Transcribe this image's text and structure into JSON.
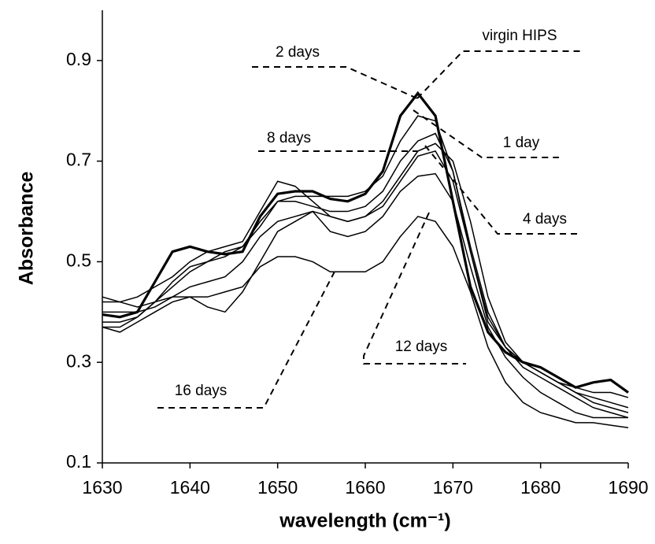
{
  "chart_data": {
    "type": "line",
    "x_label": "wavelength (cm⁻¹)",
    "y_label": "Absorbance",
    "x": [
      1630,
      1632,
      1634,
      1636,
      1638,
      1640,
      1642,
      1644,
      1646,
      1648,
      1650,
      1652,
      1654,
      1656,
      1658,
      1660,
      1662,
      1664,
      1666,
      1668,
      1670,
      1672,
      1674,
      1676,
      1678,
      1680,
      1682,
      1684,
      1686,
      1688,
      1690
    ],
    "xlim": [
      1630,
      1690
    ],
    "xticks": [
      1630,
      1640,
      1650,
      1660,
      1670,
      1680,
      1690
    ],
    "ylim": [
      0.1,
      1.0
    ],
    "yticks": [
      0.1,
      0.3,
      0.5,
      0.7,
      0.9
    ],
    "series": [
      {
        "name": "virgin HIPS",
        "color": "#000000",
        "values": [
          0.395,
          0.39,
          0.4,
          0.46,
          0.52,
          0.53,
          0.52,
          0.515,
          0.52,
          0.59,
          0.635,
          0.64,
          0.64,
          0.625,
          0.62,
          0.635,
          0.68,
          0.79,
          0.835,
          0.79,
          0.62,
          0.45,
          0.36,
          0.32,
          0.3,
          0.29,
          0.27,
          0.25,
          0.26,
          0.265,
          0.24
        ]
      },
      {
        "name": "2 days",
        "color": "#000000",
        "values": [
          0.38,
          0.38,
          0.39,
          0.42,
          0.45,
          0.48,
          0.5,
          0.52,
          0.53,
          0.57,
          0.62,
          0.63,
          0.63,
          0.63,
          0.63,
          0.64,
          0.67,
          0.74,
          0.79,
          0.78,
          0.68,
          0.52,
          0.38,
          0.33,
          0.3,
          0.28,
          0.26,
          0.24,
          0.23,
          0.22,
          0.21
        ]
      },
      {
        "name": "1 day",
        "color": "#000000",
        "values": [
          0.37,
          0.37,
          0.39,
          0.42,
          0.46,
          0.49,
          0.5,
          0.51,
          0.53,
          0.58,
          0.62,
          0.62,
          0.61,
          0.6,
          0.6,
          0.61,
          0.64,
          0.7,
          0.74,
          0.755,
          0.68,
          0.53,
          0.4,
          0.33,
          0.3,
          0.28,
          0.26,
          0.25,
          0.24,
          0.24,
          0.23
        ]
      },
      {
        "name": "4 days",
        "color": "#000000",
        "values": [
          0.4,
          0.4,
          0.4,
          0.41,
          0.43,
          0.45,
          0.46,
          0.47,
          0.5,
          0.55,
          0.58,
          0.59,
          0.6,
          0.59,
          0.58,
          0.59,
          0.62,
          0.67,
          0.72,
          0.735,
          0.7,
          0.58,
          0.43,
          0.34,
          0.3,
          0.28,
          0.26,
          0.24,
          0.22,
          0.21,
          0.2
        ]
      },
      {
        "name": "8 days",
        "color": "#000000",
        "values": [
          0.42,
          0.42,
          0.43,
          0.45,
          0.47,
          0.5,
          0.52,
          0.53,
          0.54,
          0.6,
          0.66,
          0.65,
          0.62,
          0.59,
          0.58,
          0.59,
          0.61,
          0.66,
          0.71,
          0.72,
          0.66,
          0.52,
          0.39,
          0.33,
          0.29,
          0.27,
          0.25,
          0.23,
          0.21,
          0.2,
          0.19
        ]
      },
      {
        "name": "12 days",
        "color": "#000000",
        "values": [
          0.43,
          0.42,
          0.41,
          0.42,
          0.43,
          0.43,
          0.41,
          0.4,
          0.44,
          0.5,
          0.56,
          0.58,
          0.6,
          0.56,
          0.55,
          0.56,
          0.59,
          0.64,
          0.67,
          0.675,
          0.62,
          0.49,
          0.37,
          0.31,
          0.27,
          0.24,
          0.22,
          0.2,
          0.19,
          0.19,
          0.19
        ]
      },
      {
        "name": "16 days",
        "color": "#000000",
        "values": [
          0.37,
          0.36,
          0.38,
          0.4,
          0.42,
          0.43,
          0.43,
          0.44,
          0.45,
          0.49,
          0.51,
          0.51,
          0.5,
          0.48,
          0.48,
          0.48,
          0.5,
          0.55,
          0.59,
          0.58,
          0.53,
          0.44,
          0.33,
          0.26,
          0.22,
          0.2,
          0.19,
          0.18,
          0.18,
          0.175,
          0.17
        ]
      }
    ]
  }
}
